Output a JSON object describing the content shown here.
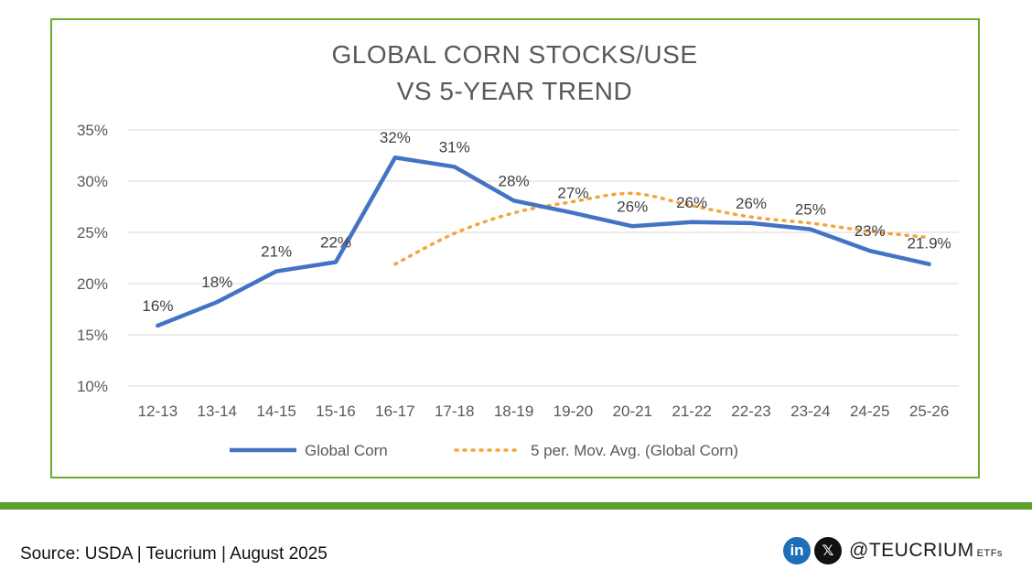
{
  "chart_data": {
    "type": "line",
    "title_line1": "GLOBAL CORN STOCKS/USE",
    "title_line2": "VS 5-YEAR TREND",
    "categories": [
      "12-13",
      "13-14",
      "14-15",
      "15-16",
      "16-17",
      "17-18",
      "18-19",
      "19-20",
      "20-21",
      "21-22",
      "22-23",
      "23-24",
      "24-25",
      "25-26"
    ],
    "yticks": [
      "10%",
      "15%",
      "20%",
      "25%",
      "30%",
      "35%"
    ],
    "ylim": [
      10,
      35
    ],
    "grid": true,
    "legend_position": "bottom",
    "series": [
      {
        "name": "Global Corn",
        "color": "#4472c4",
        "style": "solid",
        "values": [
          15.9,
          18.2,
          21.2,
          22.1,
          32.3,
          31.4,
          28.1,
          26.9,
          25.6,
          26.0,
          25.9,
          25.3,
          23.2,
          21.9
        ],
        "labels": [
          "16%",
          "18%",
          "21%",
          "22%",
          "32%",
          "31%",
          "28%",
          "27%",
          "26%",
          "26%",
          "26%",
          "25%",
          "23%",
          "21.9%"
        ]
      },
      {
        "name": "5 per. Mov. Avg. (Global Corn)",
        "color": "#f4a53a",
        "style": "dotted",
        "values": [
          null,
          null,
          null,
          null,
          21.9,
          24.9,
          26.9,
          28.0,
          28.8,
          27.6,
          26.5,
          25.9,
          25.1,
          24.5
        ]
      }
    ]
  },
  "footer": {
    "source": "Source: USDA | Teucrium | August 2025",
    "linkedin_icon": "in",
    "x_icon": "𝕏",
    "handle": "@TEUCRIUM",
    "handle_suffix": "ETFs"
  }
}
